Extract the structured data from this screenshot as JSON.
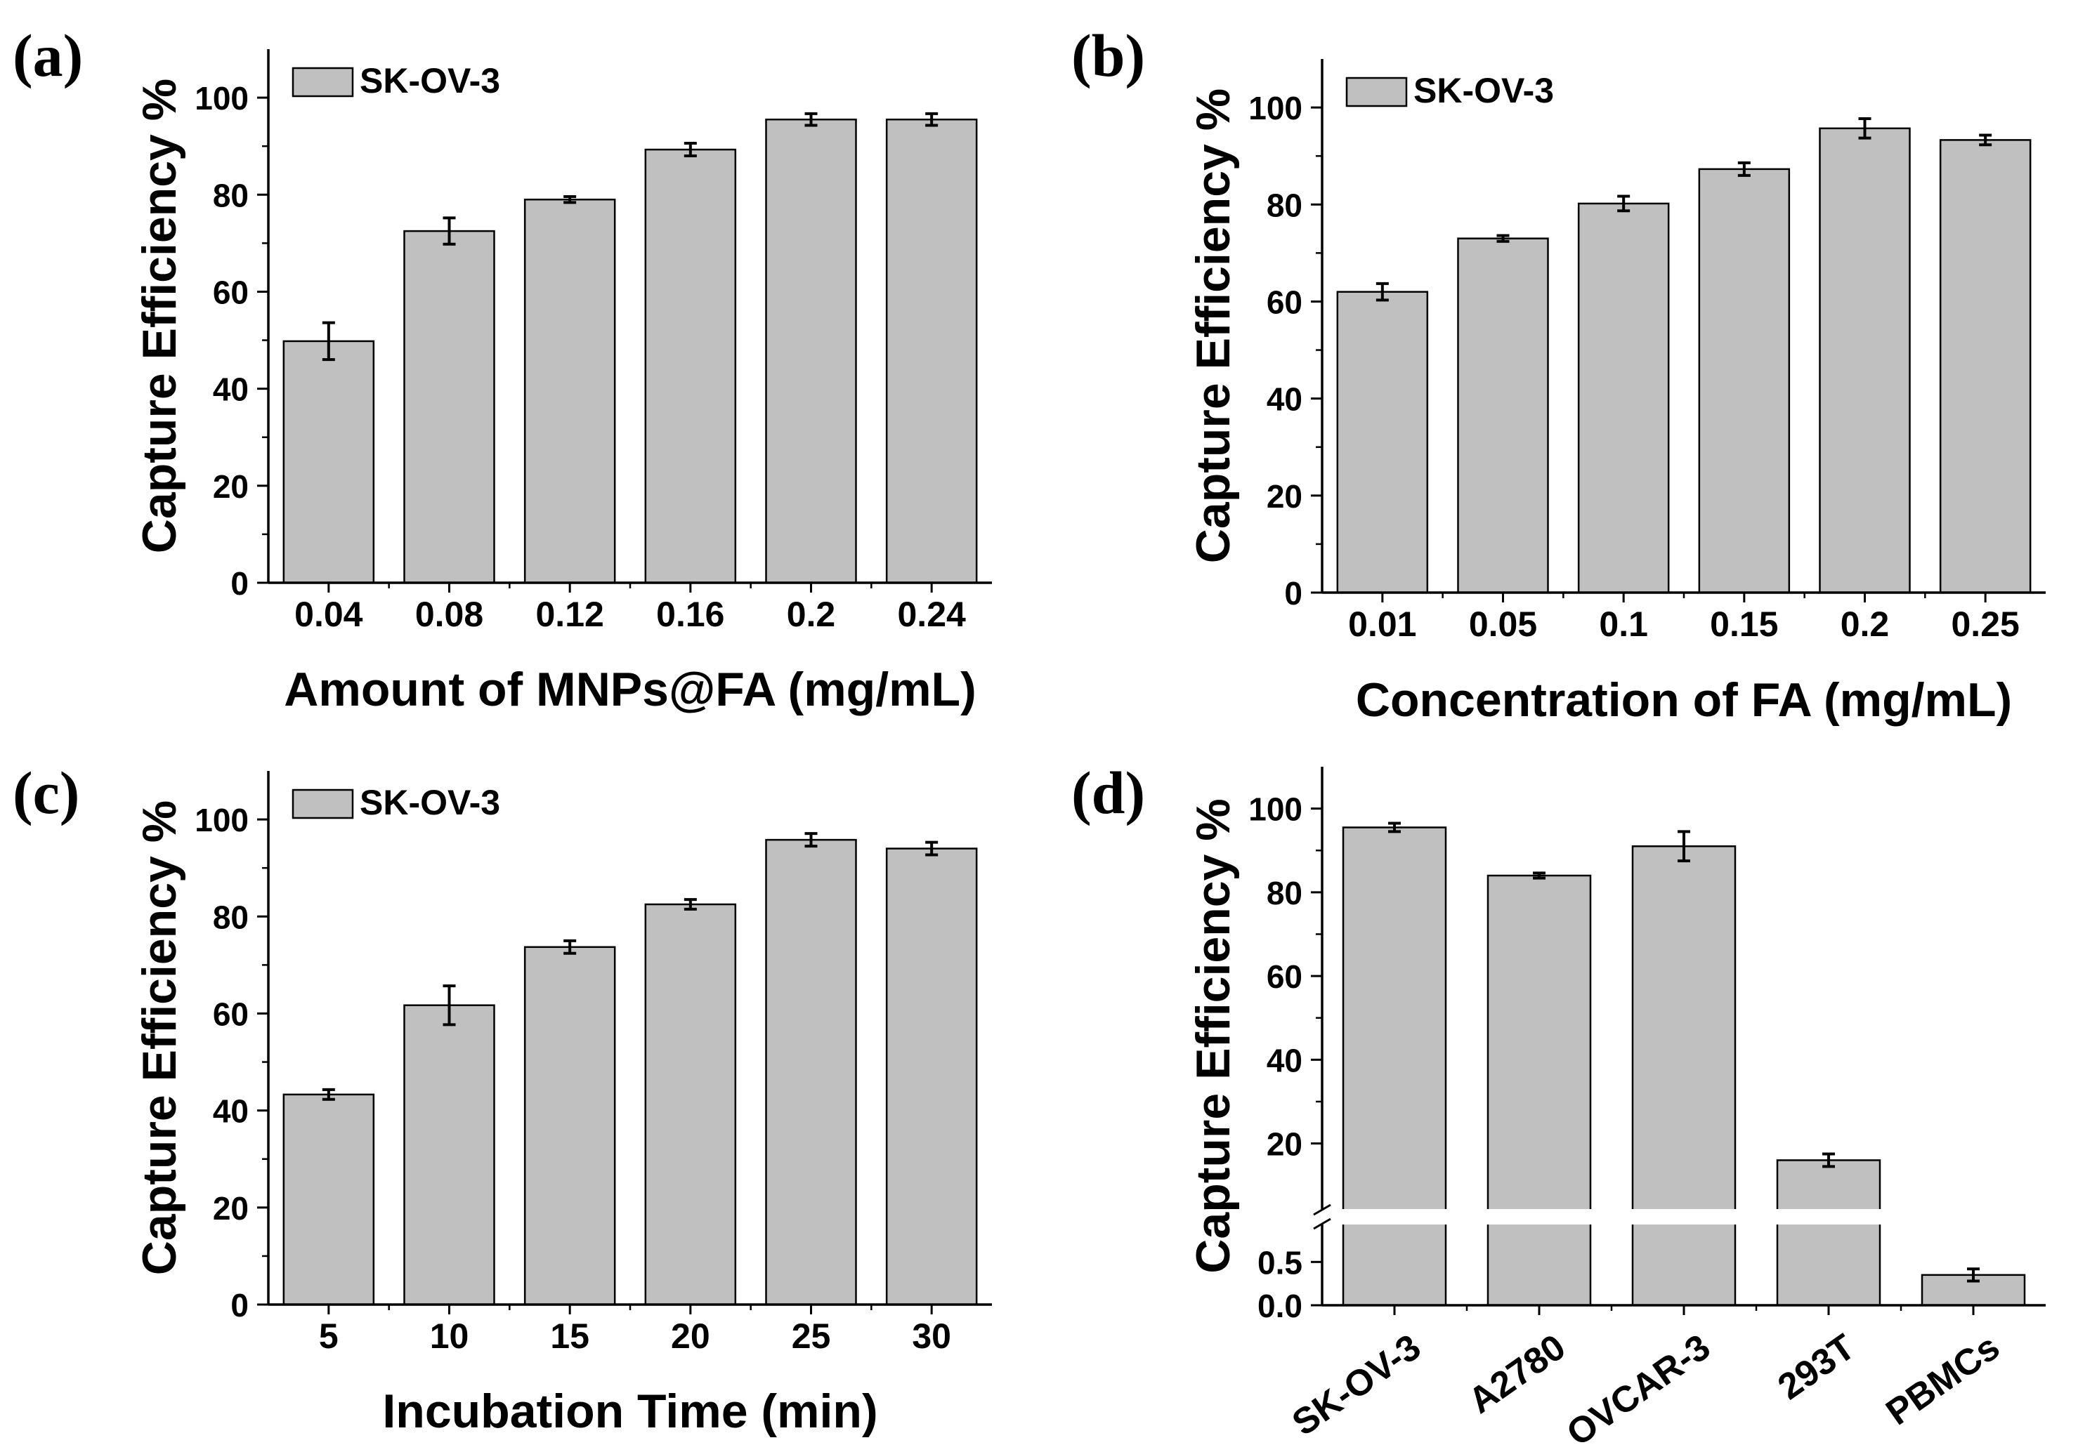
{
  "chart_data": [
    {
      "type": "bar",
      "panel_label": "(a)",
      "title": "",
      "xlabel": "Amount of MNPs@FA (mg/mL)",
      "ylabel": "Capture Efficiency %",
      "legend": "SK-OV-3",
      "legend_position": "top-left",
      "categories": [
        "0.04",
        "0.08",
        "0.12",
        "0.16",
        "0.2",
        "0.24"
      ],
      "values": [
        49.8,
        72.5,
        79.0,
        89.3,
        95.5,
        95.5
      ],
      "errors": [
        3.8,
        2.7,
        0.6,
        1.3,
        1.2,
        1.2
      ],
      "ylim": [
        0,
        110
      ],
      "yticks": [
        0,
        20,
        40,
        60,
        80,
        100
      ]
    },
    {
      "type": "bar",
      "panel_label": "(b)",
      "title": "",
      "xlabel": "Concentration of FA (mg/mL)",
      "ylabel": "Capture Efficiency %",
      "legend": "SK-OV-3",
      "legend_position": "top-left",
      "categories": [
        "0.01",
        "0.05",
        "0.1",
        "0.15",
        "0.2",
        "0.25"
      ],
      "values": [
        62.0,
        73.0,
        80.2,
        87.3,
        95.7,
        93.3
      ],
      "errors": [
        1.7,
        0.6,
        1.5,
        1.3,
        2.0,
        1.0
      ],
      "ylim": [
        0,
        110
      ],
      "yticks": [
        0,
        20,
        40,
        60,
        80,
        100
      ]
    },
    {
      "type": "bar",
      "panel_label": "(c)",
      "title": "",
      "xlabel": "Incubation Time (min)",
      "ylabel": "Capture Efficiency %",
      "legend": "SK-OV-3",
      "legend_position": "top-left",
      "categories": [
        "5",
        "10",
        "15",
        "20",
        "25",
        "30"
      ],
      "values": [
        43.3,
        61.7,
        73.7,
        82.5,
        95.8,
        94.0
      ],
      "errors": [
        1.0,
        4.0,
        1.3,
        1.0,
        1.3,
        1.3
      ],
      "ylim": [
        0,
        110
      ],
      "yticks": [
        0,
        20,
        40,
        60,
        80,
        100
      ]
    },
    {
      "type": "bar",
      "panel_label": "(d)",
      "title": "",
      "xlabel": "",
      "ylabel": "Capture Efficiency %",
      "categories": [
        "SK-OV-3",
        "A2780",
        "OVCAR-3",
        "293T",
        "PBMCs"
      ],
      "values": [
        95.5,
        84.0,
        91.0,
        16.0,
        0.35
      ],
      "errors": [
        1.0,
        0.6,
        3.5,
        1.5,
        0.07
      ],
      "y_axis_break": true,
      "lower_segment": {
        "ylim": [
          0.0,
          0.9
        ],
        "yticks": [
          0.0,
          0.5
        ]
      },
      "upper_segment": {
        "ylim": [
          5,
          110
        ],
        "yticks": [
          20,
          40,
          60,
          80,
          100
        ]
      }
    }
  ]
}
